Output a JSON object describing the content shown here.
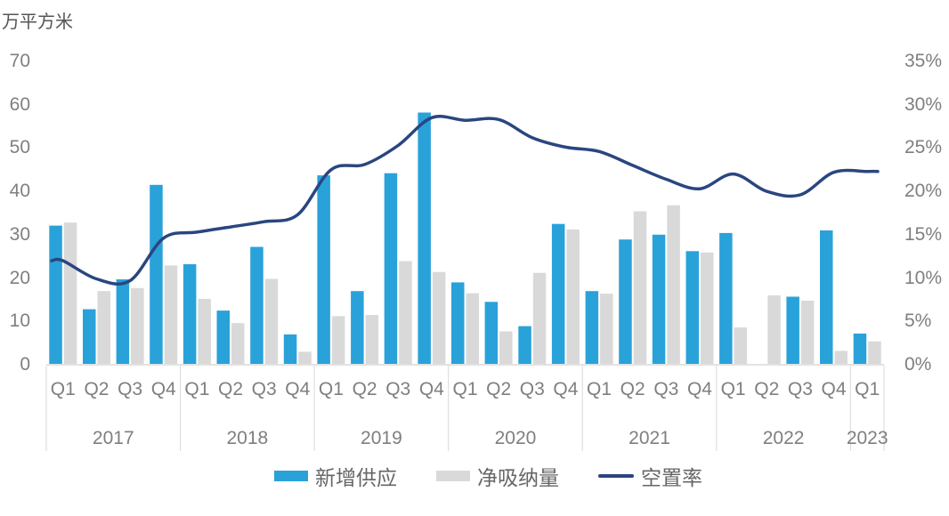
{
  "chart": {
    "unit_label": "万平方米",
    "legend": [
      {
        "label": "新增供应",
        "type": "bar",
        "color": "#29A2DA"
      },
      {
        "label": "净吸纳量",
        "type": "bar",
        "color": "#D9D9D9"
      },
      {
        "label": "空置率",
        "type": "line",
        "color": "#2A4680"
      }
    ]
  },
  "chart_data": {
    "type": "combo bar+line",
    "title": "",
    "unit_left": "万平方米",
    "left_axis": {
      "ticks": [
        0,
        10,
        20,
        30,
        40,
        50,
        60,
        70
      ],
      "max": 70,
      "label": "万平方米"
    },
    "right_axis": {
      "ticks": [
        "0%",
        "5%",
        "10%",
        "15%",
        "20%",
        "25%",
        "30%",
        "35%"
      ],
      "max_percent": 35
    },
    "years": [
      {
        "label": "2017",
        "quarters": [
          "Q1",
          "Q2",
          "Q3",
          "Q4"
        ]
      },
      {
        "label": "2018",
        "quarters": [
          "Q1",
          "Q2",
          "Q3",
          "Q4"
        ]
      },
      {
        "label": "2019",
        "quarters": [
          "Q1",
          "Q2",
          "Q3",
          "Q4"
        ]
      },
      {
        "label": "2020",
        "quarters": [
          "Q1",
          "Q2",
          "Q3",
          "Q4"
        ]
      },
      {
        "label": "2021",
        "quarters": [
          "Q1",
          "Q2",
          "Q3",
          "Q4"
        ]
      },
      {
        "label": "2022",
        "quarters": [
          "Q1",
          "Q2",
          "Q3",
          "Q4"
        ]
      },
      {
        "label": "2023",
        "quarters": [
          "Q1"
        ]
      }
    ],
    "series": [
      {
        "name": "新增供应",
        "type": "bar",
        "axis": "left",
        "color": "#29A2DA",
        "values": [
          31.9,
          12.6,
          19.5,
          41.3,
          23.0,
          12.3,
          27.0,
          6.8,
          43.5,
          16.8,
          44.0,
          58.0,
          18.8,
          14.3,
          8.7,
          32.3,
          16.8,
          28.7,
          29.8,
          26.0,
          30.2,
          0,
          15.5,
          30.8,
          7.0
        ]
      },
      {
        "name": "净吸纳量",
        "type": "bar",
        "axis": "left",
        "color": "#D9D9D9",
        "values": [
          32.6,
          16.8,
          17.5,
          22.7,
          15.0,
          9.4,
          19.6,
          2.8,
          11.0,
          11.3,
          23.7,
          21.2,
          16.3,
          7.5,
          21.0,
          31.0,
          16.2,
          35.2,
          36.6,
          25.7,
          8.4,
          15.8,
          14.6,
          3.0,
          5.2
        ]
      },
      {
        "name": "空置率",
        "type": "line",
        "axis": "right",
        "color": "#2A4680",
        "values_percent": [
          11.9,
          9.8,
          9.6,
          14.5,
          15.2,
          15.8,
          16.4,
          17.2,
          22.4,
          23.0,
          25.2,
          28.4,
          28.1,
          28.2,
          26.1,
          25.0,
          24.5,
          22.9,
          21.3,
          20.2,
          21.9,
          19.9,
          19.5,
          22.1,
          22.2
        ]
      }
    ],
    "grid": false,
    "legend_position": "bottom"
  }
}
